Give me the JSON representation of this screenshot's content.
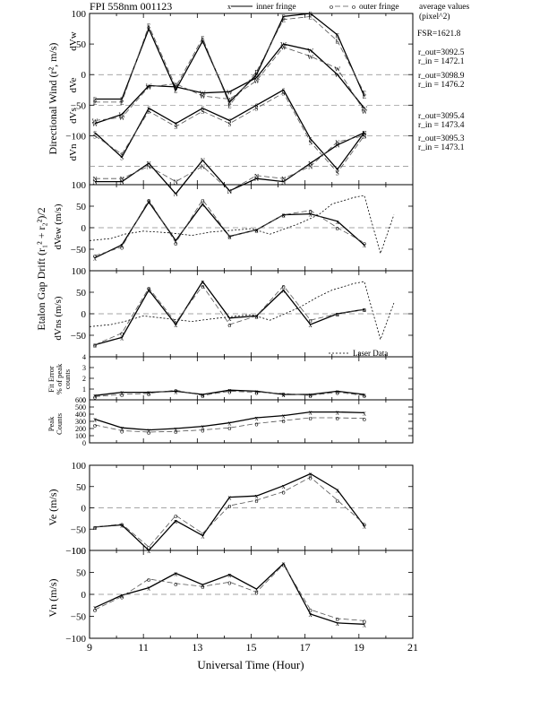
{
  "figure": {
    "title": "FPI 558nm 001123",
    "legend": {
      "inner_marker": "x",
      "inner_label": "inner fringe",
      "outer_marker": "o",
      "outer_label": "outer fringe",
      "avg_label_1": "average values",
      "avg_label_2": "(pixel^2)"
    },
    "fsr": "FSR=1621.8",
    "annotations": [
      {
        "r_out": "r_out=3092.5",
        "r_in": "r_in = 1472.1"
      },
      {
        "r_out": "r_out=3098.9",
        "r_in": "r_in = 1476.2"
      },
      {
        "r_out": "r_out=3095.4",
        "r_in": "r_in = 1473.4"
      },
      {
        "r_out": "r_out=3095.3",
        "r_in": "r_in = 1473.1"
      }
    ],
    "ylabels": {
      "panel1": "Directional Wind  (r², m/s)",
      "panel1_sub": [
        "dVw",
        "dVe",
        "dVs",
        "dVn"
      ],
      "panel23": "Etalon Gap Drift  (r₁² + r₂²)/2",
      "panel2_sub": "dVew (m/s)",
      "panel3_sub": "dVns (m/s)",
      "panel4": "Fit Error",
      "panel4_b": "% of peak",
      "panel4_c": "counts",
      "panel5": "Peak",
      "panel5_b": "Counts",
      "panel6": "Ve (m/s)",
      "panel7": "Vn (m/s)"
    },
    "xlabel": "Universal Time (Hour)",
    "laser_legend": "Laser Data",
    "colors": {
      "inner": "#000000",
      "outer": "#555555",
      "grid": "#888888"
    }
  },
  "chart_data": [
    {
      "type": "line",
      "panel": "Directional Wind",
      "x": [
        9.2,
        10.2,
        11.2,
        12.2,
        13.2,
        14.2,
        15.2,
        16.2,
        17.2,
        18.2,
        19.2
      ],
      "ylim": [
        -180,
        100
      ],
      "yticks": [
        100,
        50,
        0,
        -50,
        -100
      ],
      "series": [
        {
          "name": "dVw inner",
          "letter": "W",
          "values": [
            -80,
            -65,
            -18,
            -20,
            -30,
            -28,
            -5,
            50,
            40,
            0,
            -55
          ]
        },
        {
          "name": "dVw outer",
          "letter": "W",
          "values": [
            -75,
            -70,
            -20,
            -15,
            -35,
            -40,
            -10,
            45,
            30,
            10,
            -60
          ]
        },
        {
          "name": "dVe inner",
          "letter": "E",
          "values": [
            -40,
            -40,
            75,
            -25,
            55,
            -45,
            0,
            95,
            100,
            65,
            -35
          ]
        },
        {
          "name": "dVe outer",
          "letter": "E",
          "values": [
            -45,
            -45,
            80,
            -20,
            60,
            -50,
            5,
            90,
            95,
            55,
            -30
          ]
        },
        {
          "name": "dVs inner",
          "letter": "S",
          "values": [
            -95,
            -135,
            -55,
            -80,
            -55,
            -75,
            -50,
            -25,
            -105,
            -155,
            -95
          ]
        },
        {
          "name": "dVs outer",
          "letter": "S",
          "values": [
            -100,
            -130,
            -60,
            -85,
            -60,
            -80,
            -55,
            -30,
            -110,
            -160,
            -100
          ]
        },
        {
          "name": "dVn inner",
          "letter": "N",
          "values": [
            -175,
            -175,
            -145,
            -195,
            -140,
            -190,
            -170,
            -175,
            -145,
            -115,
            -95
          ]
        },
        {
          "name": "dVn outer",
          "letter": "N",
          "values": [
            -170,
            -170,
            -150,
            -175,
            -150,
            -190,
            -165,
            -170,
            -150,
            -110,
            -100
          ]
        }
      ]
    },
    {
      "type": "line",
      "panel": "dVew",
      "x": [
        9.2,
        10.2,
        11.2,
        12.2,
        13.2,
        14.2,
        15.2,
        16.2,
        17.2,
        18.2,
        19.2
      ],
      "ylim": [
        -100,
        100
      ],
      "yticks": [
        100,
        50,
        0,
        -50
      ],
      "series": [
        {
          "name": "inner fringe",
          "values": [
            -70,
            -40,
            60,
            -30,
            55,
            -20,
            -5,
            30,
            32,
            15,
            -40
          ]
        },
        {
          "name": "outer fringe",
          "values": [
            -65,
            -45,
            65,
            -35,
            65,
            -20,
            -5,
            30,
            40,
            0,
            -35
          ]
        },
        {
          "name": "Laser Data",
          "x": [
            9.0,
            9.8,
            10.3,
            11.0,
            12.0,
            12.8,
            13.5,
            14.5,
            15.0,
            15.7,
            16.8,
            17.5,
            18.0,
            18.8,
            19.2,
            19.8,
            20.3
          ],
          "values": [
            -30,
            -25,
            -15,
            -8,
            -12,
            -18,
            -10,
            -5,
            -2,
            -15,
            10,
            30,
            55,
            70,
            75,
            -60,
            30
          ]
        }
      ]
    },
    {
      "type": "line",
      "panel": "dVns",
      "x": [
        9.2,
        10.2,
        11.2,
        12.2,
        13.2,
        14.2,
        15.2,
        16.2,
        17.2,
        18.2,
        19.2
      ],
      "ylim": [
        -100,
        100
      ],
      "yticks": [
        100,
        50,
        0,
        -50
      ],
      "series": [
        {
          "name": "inner fringe",
          "values": [
            -72,
            -55,
            55,
            -25,
            75,
            -10,
            -5,
            55,
            -25,
            0,
            10
          ]
        },
        {
          "name": "outer fringe",
          "values": [
            -72,
            -45,
            60,
            -20,
            65,
            -25,
            -5,
            65,
            -15,
            0,
            10
          ]
        },
        {
          "name": "Laser Data",
          "x": [
            9.0,
            9.8,
            10.3,
            11.0,
            12.0,
            12.8,
            13.5,
            14.5,
            15.0,
            15.7,
            16.8,
            17.5,
            18.0,
            18.8,
            19.2,
            19.8,
            20.3
          ],
          "values": [
            -30,
            -25,
            -18,
            -5,
            -12,
            -18,
            -12,
            -5,
            -2,
            -15,
            15,
            40,
            55,
            70,
            75,
            -60,
            25
          ]
        }
      ]
    },
    {
      "type": "line",
      "panel": "Fit Error",
      "x": [
        9.2,
        10.2,
        11.2,
        12.2,
        13.2,
        14.2,
        15.2,
        16.2,
        17.2,
        18.2,
        19.2
      ],
      "ylim": [
        0,
        4
      ],
      "yticks": [
        4,
        3,
        2,
        1,
        0
      ],
      "series": [
        {
          "name": "inner fringe",
          "values": [
            0.4,
            0.7,
            0.7,
            0.8,
            0.5,
            0.9,
            0.8,
            0.5,
            0.5,
            0.8,
            0.5
          ]
        },
        {
          "name": "outer fringe",
          "values": [
            0.3,
            0.5,
            0.6,
            0.9,
            0.4,
            0.8,
            0.7,
            0.6,
            0.4,
            0.7,
            0.4
          ]
        }
      ]
    },
    {
      "type": "line",
      "panel": "Peak Counts",
      "x": [
        9.2,
        10.2,
        11.2,
        12.2,
        13.2,
        14.2,
        15.2,
        16.2,
        17.2,
        18.2,
        19.2
      ],
      "ylim": [
        0,
        600
      ],
      "yticks": [
        600,
        500,
        400,
        300,
        200,
        100,
        0
      ],
      "series": [
        {
          "name": "inner fringe",
          "values": [
            330,
            210,
            180,
            200,
            230,
            280,
            350,
            380,
            430,
            430,
            420
          ]
        },
        {
          "name": "outer fringe",
          "values": [
            250,
            170,
            150,
            160,
            180,
            210,
            270,
            310,
            350,
            350,
            340
          ]
        }
      ]
    },
    {
      "type": "line",
      "panel": "Ve",
      "x": [
        9.2,
        10.2,
        11.2,
        12.2,
        13.2,
        14.2,
        15.2,
        16.2,
        17.2,
        18.2,
        19.2
      ],
      "ylim": [
        -100,
        100
      ],
      "yticks": [
        100,
        50,
        0,
        -50,
        -100
      ],
      "series": [
        {
          "name": "inner fringe",
          "values": [
            -45,
            -40,
            -100,
            -30,
            -65,
            25,
            28,
            52,
            80,
            42,
            -42
          ]
        },
        {
          "name": "outer fringe",
          "values": [
            -45,
            -38,
            -92,
            -18,
            -60,
            5,
            18,
            38,
            72,
            18,
            -38
          ]
        }
      ]
    },
    {
      "type": "line",
      "panel": "Vn",
      "x": [
        9.2,
        10.2,
        11.2,
        12.2,
        13.2,
        14.2,
        15.2,
        16.2,
        17.2,
        18.2,
        19.2
      ],
      "ylim": [
        -100,
        100
      ],
      "yticks": [
        100,
        50,
        0,
        -50,
        -100
      ],
      "xticks": [
        9,
        11,
        13,
        15,
        17,
        19,
        21
      ],
      "xlim": [
        9,
        21
      ],
      "series": [
        {
          "name": "inner fringe",
          "values": [
            -30,
            -2,
            15,
            48,
            22,
            45,
            12,
            70,
            -45,
            -65,
            -68
          ]
        },
        {
          "name": "outer fringe",
          "values": [
            -35,
            -5,
            35,
            25,
            18,
            28,
            5,
            68,
            -35,
            -55,
            -60
          ]
        }
      ]
    }
  ]
}
